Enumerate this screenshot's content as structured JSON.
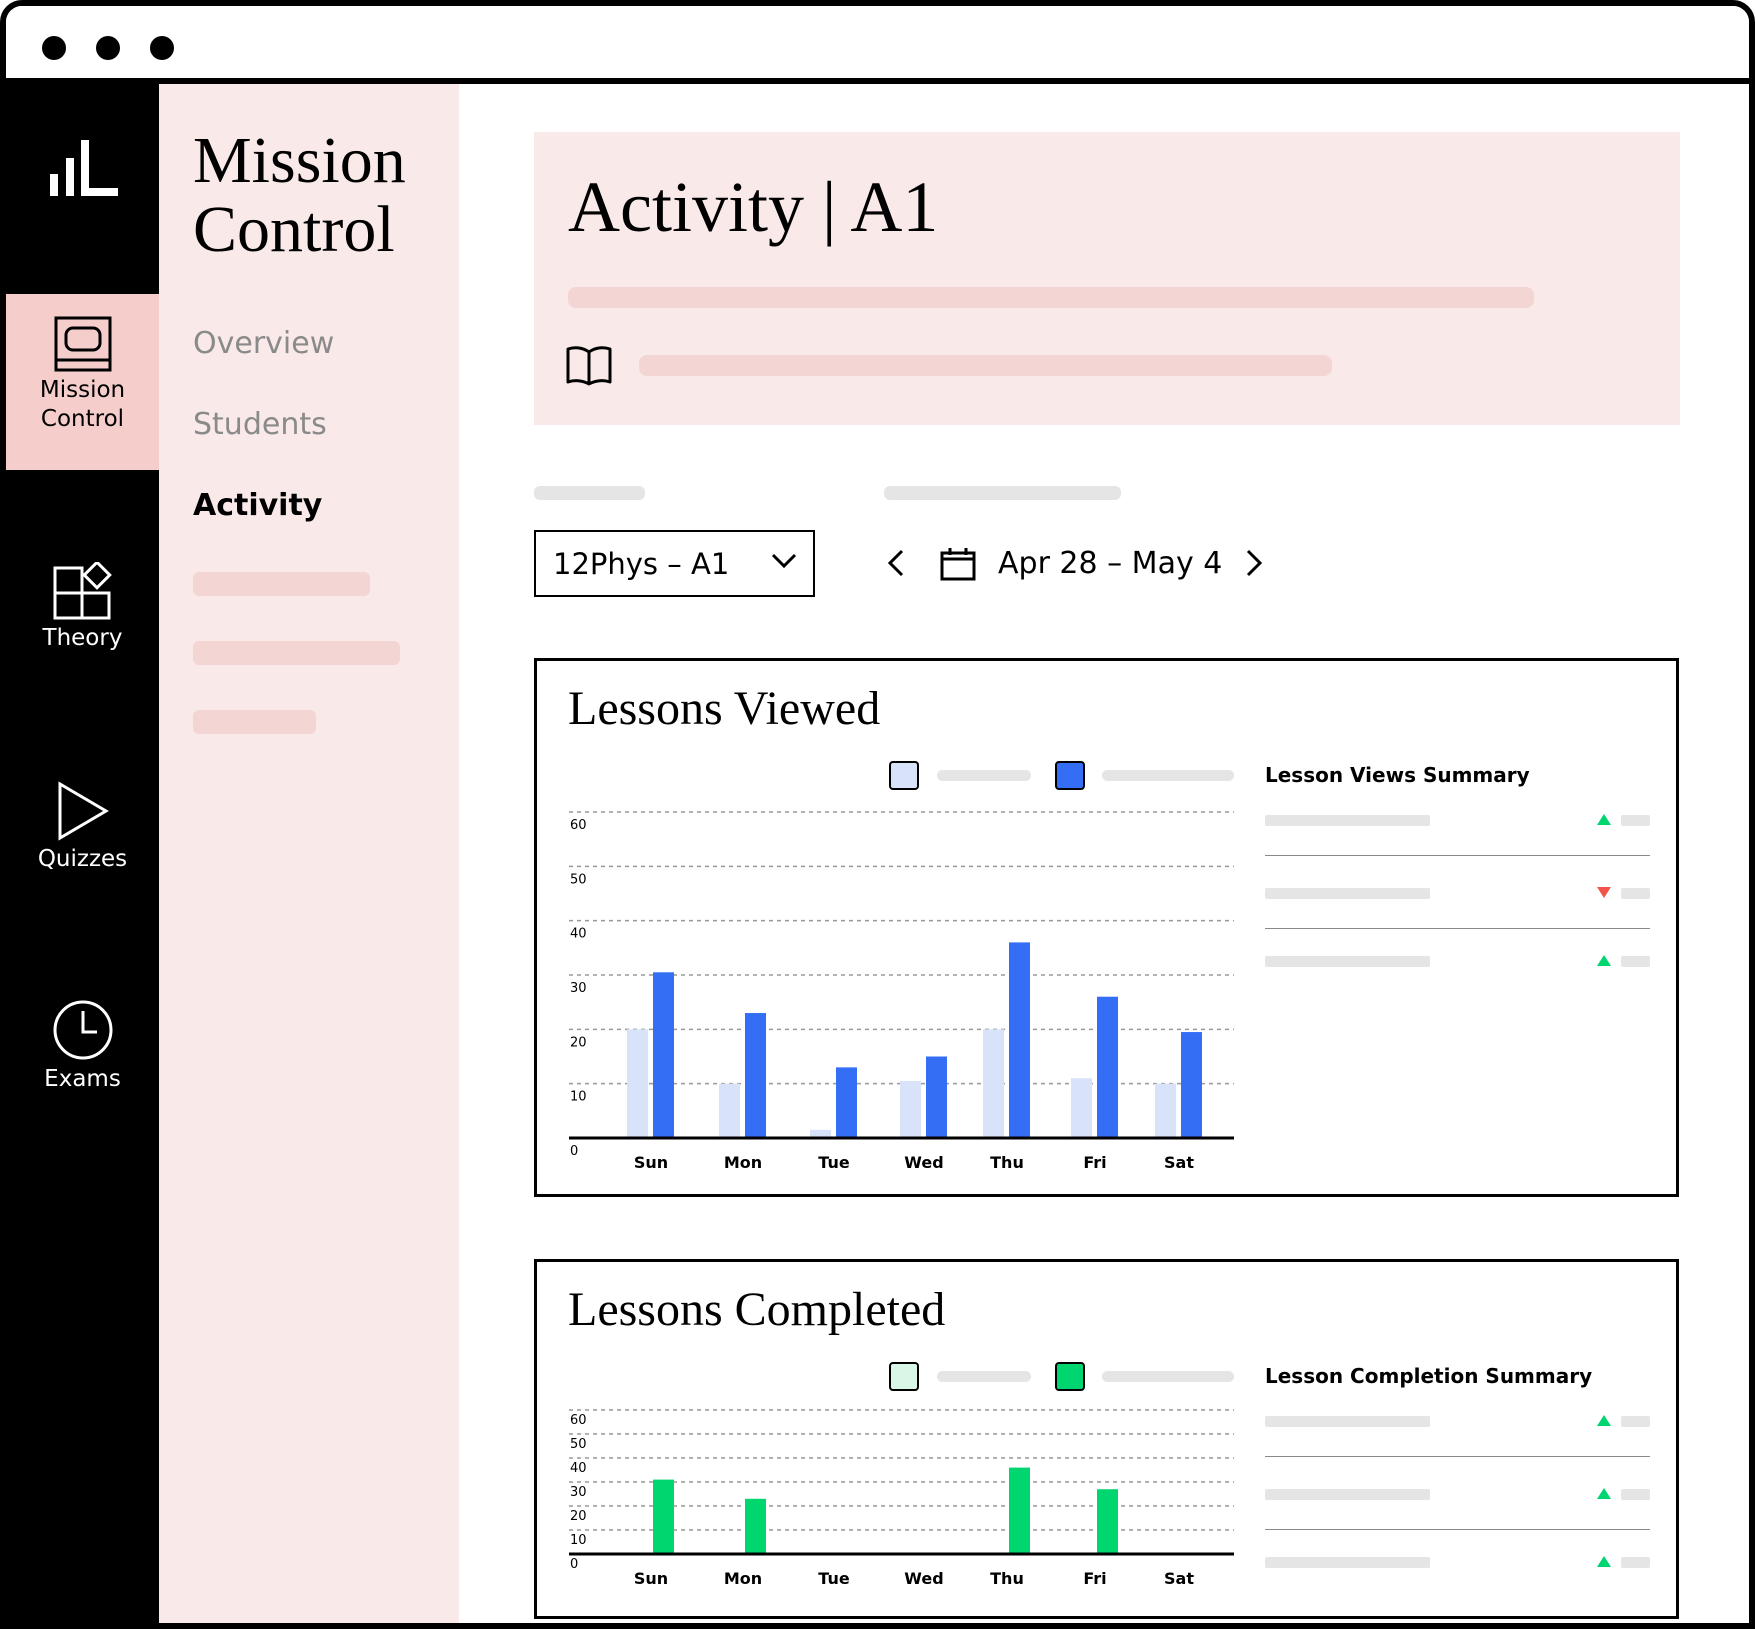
{
  "window": {
    "controls": [
      "close",
      "minimize",
      "maximize"
    ]
  },
  "nav": {
    "logo_icon": "bar-chart-logo-icon",
    "items": [
      {
        "label_line1": "Mission",
        "label_line2": "Control",
        "icon": "monitor-icon",
        "active": true
      },
      {
        "label": "Theory",
        "icon": "blocks-icon"
      },
      {
        "label": "Quizzes",
        "icon": "play-icon"
      },
      {
        "label": "Exams",
        "icon": "clock-icon"
      }
    ]
  },
  "sidebar": {
    "title_line1": "Mission",
    "title_line2": "Control",
    "links": [
      {
        "label": "Overview",
        "active": false
      },
      {
        "label": "Students",
        "active": false
      },
      {
        "label": "Activity",
        "active": true
      }
    ]
  },
  "header": {
    "title": "Activity | A1",
    "icon": "book-open-icon"
  },
  "filters": {
    "class_select": "12Phys – A1",
    "date_range": "Apr 28 – May 4",
    "prev_icon": "chevron-left-icon",
    "next_icon": "chevron-right-icon",
    "calendar_icon": "calendar-icon"
  },
  "colors": {
    "accent_pink": "#f5cecc",
    "sidebar_bg": "#f9eae9",
    "blue": "#336ef5",
    "blue_light": "#d8e2f8",
    "green": "#00d66f",
    "green_light": "#d9f7e6",
    "trend_up": "#00d66f",
    "trend_down": "#f2544b"
  },
  "chart_data": [
    {
      "type": "bar",
      "title": "Lessons Viewed",
      "categories": [
        "Sun",
        "Mon",
        "Tue",
        "Wed",
        "Thu",
        "Fri",
        "Sat"
      ],
      "yticks": [
        0,
        10,
        20,
        30,
        40,
        50,
        60
      ],
      "ylim": [
        0,
        60
      ],
      "grid": true,
      "legend": "top",
      "series": [
        {
          "color": "#d8e2f8",
          "values": [
            20,
            10,
            1.5,
            10.5,
            20,
            11,
            10
          ]
        },
        {
          "color": "#336ef5",
          "values": [
            30.5,
            23,
            13,
            15,
            36,
            26,
            19.5
          ]
        }
      ],
      "summary": {
        "title": "Lesson Views Summary",
        "trends": [
          "up",
          "down",
          "up"
        ]
      }
    },
    {
      "type": "bar",
      "title": "Lessons Completed",
      "categories": [
        "Sun",
        "Mon",
        "Tue",
        "Wed",
        "Thu",
        "Fri",
        "Sat"
      ],
      "yticks": [
        0,
        10,
        20,
        30,
        40,
        50,
        60
      ],
      "ylim": [
        0,
        60
      ],
      "grid": true,
      "legend": "top",
      "series": [
        {
          "color": "#d9f7e6",
          "values": [
            null,
            null,
            null,
            null,
            null,
            null,
            null
          ]
        },
        {
          "color": "#00d66f",
          "values": [
            31,
            23,
            null,
            null,
            36,
            27,
            null
          ]
        }
      ],
      "summary": {
        "title": "Lesson Completion Summary",
        "trends": [
          "up",
          "up",
          "up"
        ]
      }
    }
  ]
}
